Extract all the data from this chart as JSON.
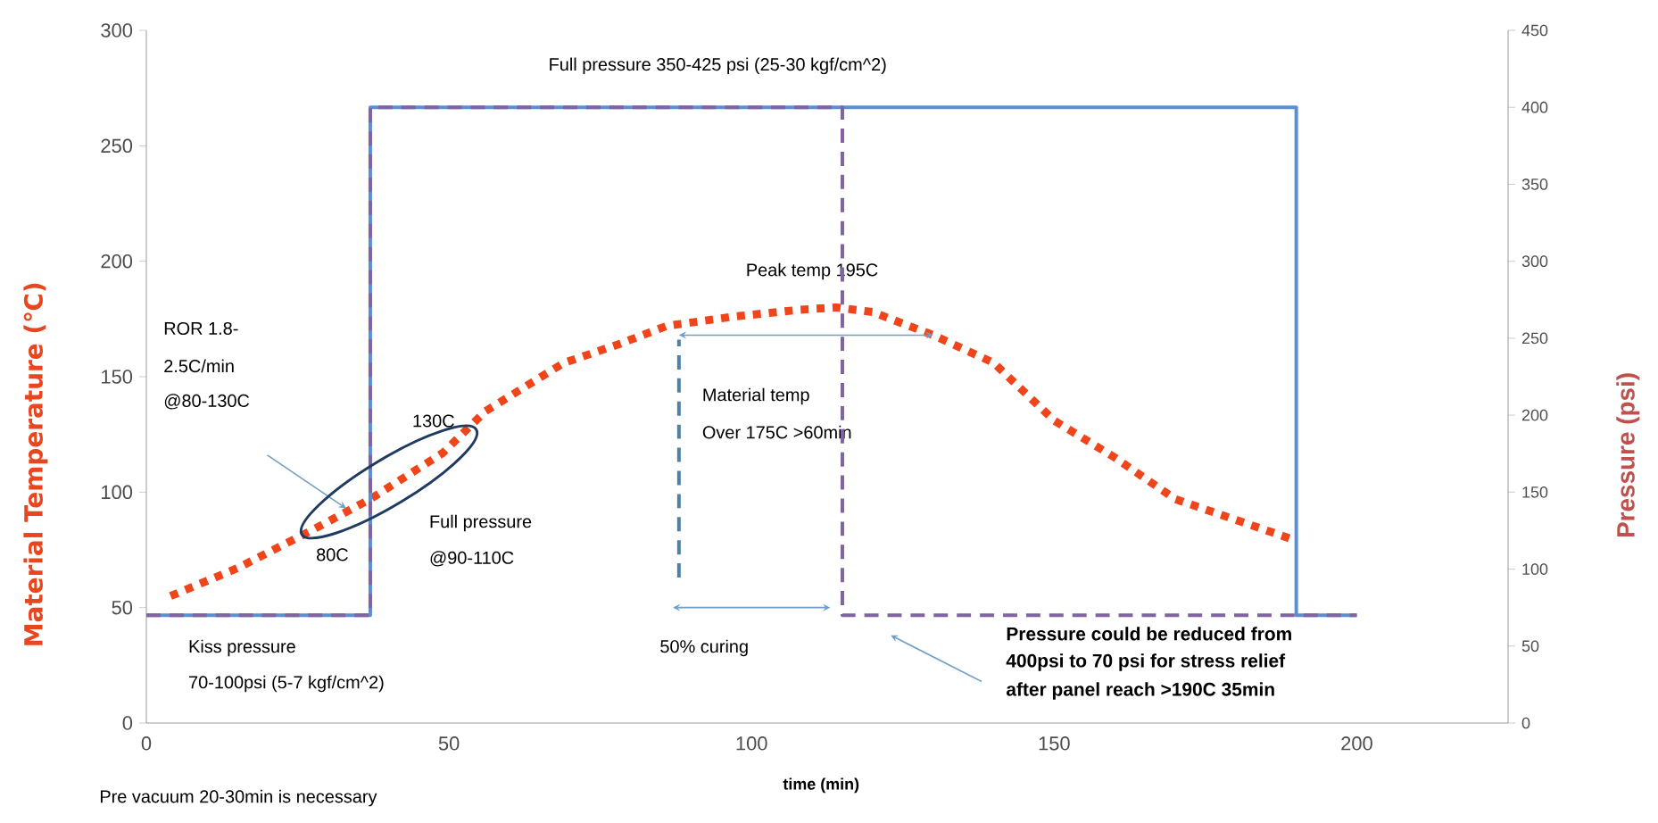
{
  "chart_data": {
    "type": "line",
    "xlabel": "time (min)",
    "ylabel": "Material Temperature (℃)",
    "y2label": "Pressure (psi)",
    "xlim": [
      0,
      225
    ],
    "xticks": [
      0,
      50,
      100,
      150,
      200
    ],
    "ylim": [
      0,
      300
    ],
    "yticks": [
      0,
      50,
      100,
      150,
      200,
      250,
      300
    ],
    "y2lim": [
      0,
      450
    ],
    "y2ticks": [
      0,
      50,
      100,
      150,
      200,
      250,
      300,
      350,
      400,
      450
    ],
    "series": [
      {
        "axis": "y",
        "color": "#f0441a",
        "line_style": "dotted",
        "x": [
          4,
          15,
          27,
          37,
          49,
          56,
          69,
          78,
          86,
          97,
          108,
          114,
          120,
          130,
          140,
          150,
          160,
          170,
          180,
          190
        ],
        "values": [
          55,
          67,
          83,
          97,
          117,
          135,
          156,
          164,
          172,
          176,
          179,
          180,
          178,
          168,
          156,
          131,
          115,
          97,
          88,
          79
        ]
      },
      {
        "axis": "y2",
        "color": "#5b8fd4",
        "line_style": "solid",
        "x": [
          0,
          37,
          37,
          190,
          190,
          200
        ],
        "values": [
          70,
          70,
          400,
          400,
          70,
          70
        ]
      },
      {
        "axis": "y2",
        "color": "#8064a2",
        "line_style": "dashed",
        "x": [
          0,
          37,
          37,
          115,
          115,
          200
        ],
        "values": [
          70,
          70,
          400,
          400,
          70,
          70
        ]
      },
      {
        "axis": "y",
        "color": "#4f81a4",
        "line_style": "dashed",
        "x": [
          88,
          88
        ],
        "values": [
          63,
          166
        ]
      }
    ],
    "annotations": [
      "Full pressure  350-425 psi  (25-30 kgf/cm^2)",
      {
        "text": "Peak temp  195C",
        "x": 110,
        "y": 180
      },
      "ROR 1.8-",
      "2.5C/min",
      "@80-130C",
      {
        "text": "130C",
        "x": 52,
        "y": 127
      },
      {
        "text": "80C",
        "x": 27,
        "y": 83
      },
      "Material temp",
      "Over 175C >60min",
      "Full pressure",
      "@90-110C",
      "Kiss pressure",
      "70-100psi  (5-7 kgf/cm^2)",
      "50% curing",
      "Pressure could  be reduced from",
      "400psi to 70 psi for stress relief",
      "after panel reach >190C 35min",
      "Pre vacuum 20-30min is necessary"
    ]
  }
}
